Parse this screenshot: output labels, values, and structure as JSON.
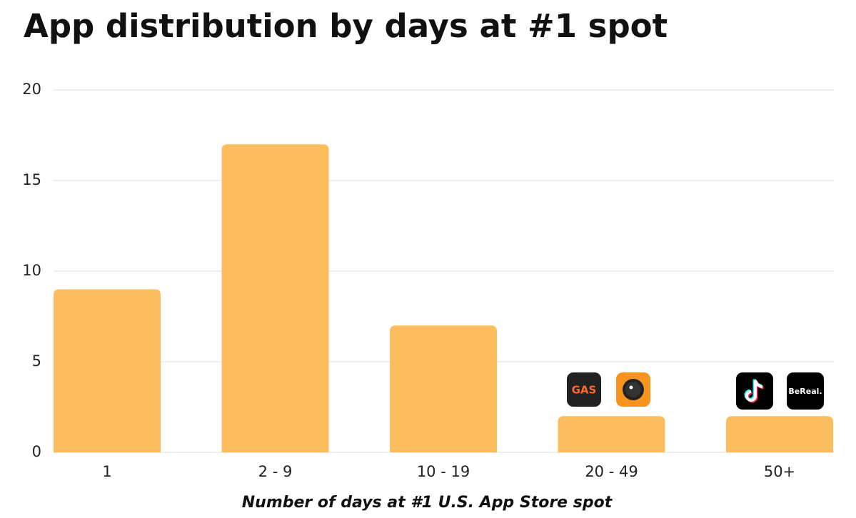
{
  "chart_data": {
    "type": "bar",
    "title": "App distribution by days at #1 spot",
    "x_label": "Number of days at #1 U.S. App Store spot",
    "categories": [
      "1",
      "2 - 9",
      "10 - 19",
      "20 - 49",
      "50+"
    ],
    "values": [
      9,
      17,
      7,
      2,
      2
    ],
    "color": "#fbbd5e",
    "ylim": [
      0,
      20
    ],
    "yticks": [
      0,
      5,
      10,
      15,
      20
    ],
    "grid": true,
    "annotations": [
      "GAS",
      "BeReal."
    ]
  }
}
